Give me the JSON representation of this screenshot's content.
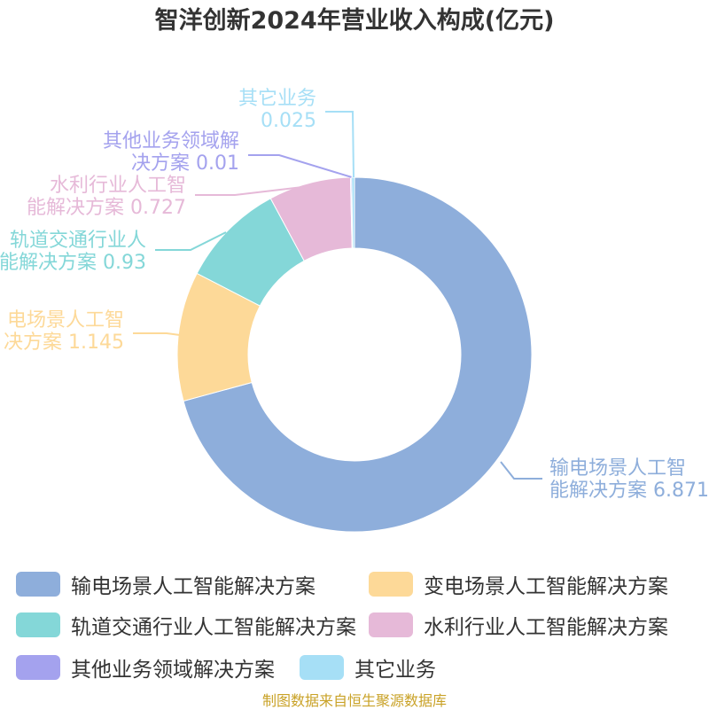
{
  "chart_data": {
    "type": "pie",
    "title": "智洋创新2024年营业收入构成(亿元)",
    "unit": "亿元",
    "slices": [
      {
        "name": "输电场景人工智能解决方案",
        "value": 6.871,
        "label_lines": [
          "输电场景人工智",
          "能解决方案 6.871"
        ],
        "color": "#8eaedb"
      },
      {
        "name": "变电场景人工智能解决方案",
        "value": 1.145,
        "label_lines": [
          "电场景人工智",
          "决方案 1.145"
        ],
        "color": "#fdd998"
      },
      {
        "name": "轨道交通行业人工智能解决方案",
        "value": 0.93,
        "label_lines": [
          "轨道交通行业人",
          "能解决方案 0.93"
        ],
        "color": "#84d7d8"
      },
      {
        "name": "水利行业人工智能解决方案",
        "value": 0.727,
        "label_lines": [
          "水利行业人工智",
          "能解决方案 0.727"
        ],
        "color": "#e6b9d8"
      },
      {
        "name": "其他业务领域解决方案",
        "value": 0.01,
        "label_lines": [
          "其他业务领域解",
          "决方案 0.01"
        ],
        "color": "#a4a2ee"
      },
      {
        "name": "其它业务",
        "value": 0.025,
        "label_lines": [
          "其它业务",
          "0.025"
        ],
        "color": "#a6dff6"
      }
    ]
  },
  "source_note": "制图数据来自恒生聚源数据库"
}
